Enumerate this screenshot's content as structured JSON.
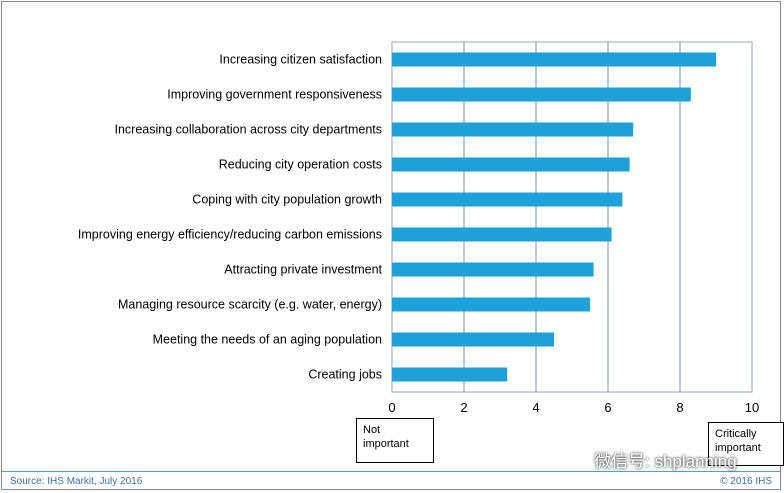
{
  "chart_data": {
    "type": "bar",
    "orientation": "horizontal",
    "categories": [
      "Increasing citizen satisfaction",
      "Improving government responsiveness",
      "Increasing collaboration across city departments",
      "Reducing city operation costs",
      "Coping with city population growth",
      "Improving energy efficiency/reducing carbon emissions",
      "Attracting private investment",
      "Managing resource scarcity (e.g. water, energy)",
      "Meeting the needs of an aging population",
      "Creating jobs"
    ],
    "values": [
      9.0,
      8.3,
      6.7,
      6.6,
      6.4,
      6.1,
      5.6,
      5.5,
      4.5,
      3.2
    ],
    "xlim": [
      0,
      10
    ],
    "xticks": [
      "0",
      "2",
      "4",
      "6",
      "8",
      "10"
    ],
    "grid": true,
    "bar_color": "#1ea0d8",
    "grid_color": "#7f8fa6"
  },
  "scale_labels": {
    "low": "Not important",
    "high": "Critically important"
  },
  "footer": {
    "source": "Source: IHS Markit, July 2016",
    "copyright": "© 2016 IHS"
  },
  "watermark": {
    "text": "微信号: shplanning",
    "icon": "wechat-icon"
  }
}
